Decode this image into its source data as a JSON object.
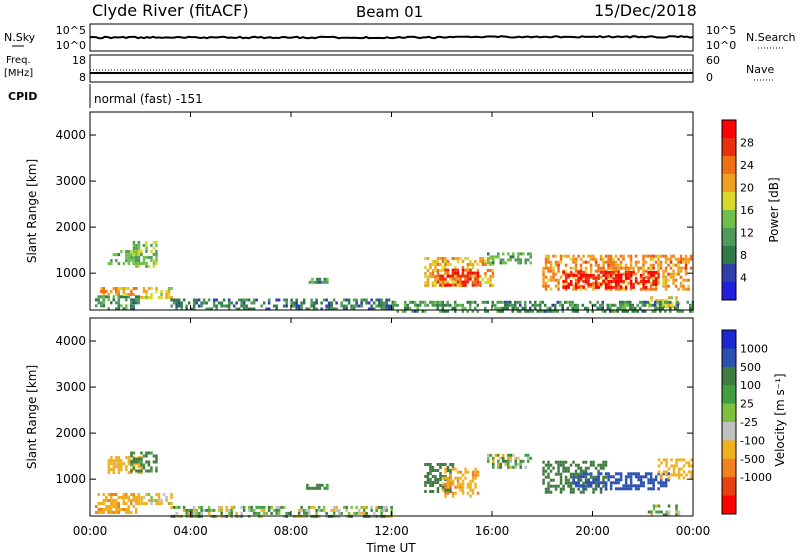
{
  "header": {
    "site": "Clyde River (fitACF)",
    "beam": "Beam 01",
    "date": "15/Dec/2018"
  },
  "top_panels": {
    "nsky_label": "N.Sky",
    "nsky_ticks": [
      "10^5",
      "10^0"
    ],
    "nsearch_label": "N.Search",
    "nsearch_ticks": [
      "10^5",
      "10^0"
    ],
    "freq_label": "Freq.",
    "freq_unit": "[MHz]",
    "freq_ticks": [
      "18",
      "8"
    ],
    "nave_label": "Nave",
    "nave_ticks": [
      "60",
      "0"
    ],
    "cpid_label": "CPID",
    "cpid_text": "normal (fast) -151"
  },
  "colors": {
    "power": [
      "#1f1fdc",
      "#2f3faa",
      "#2f7a46",
      "#4f9a5a",
      "#6fc04a",
      "#d9d92a",
      "#f0a020",
      "#f07018",
      "#e83010",
      "#ff0000"
    ],
    "velocity": [
      "#ff0000",
      "#e84010",
      "#f08020",
      "#f0b020",
      "#c0c0c0",
      "#80c040",
      "#40a040",
      "#407a40",
      "#2a50b0",
      "#1a2ad0"
    ]
  },
  "chart_data": [
    {
      "type": "heatmap",
      "name": "power",
      "ylabel": "Slant Range [km]",
      "ylim": [
        200,
        4500
      ],
      "yticks": [
        "1000",
        "2000",
        "3000",
        "4000"
      ],
      "xlim_hours": [
        0,
        24
      ],
      "colorbar_label": "Power [dB]",
      "colorbar_ticks": [
        "4",
        "8",
        "12",
        "16",
        "20",
        "24",
        "28"
      ],
      "colorbar_range": [
        0,
        32
      ],
      "regions": [
        {
          "t": [
            0.2,
            1.9
          ],
          "r": [
            250,
            520
          ],
          "value": 10
        },
        {
          "t": [
            0.4,
            1.8
          ],
          "r": [
            520,
            700
          ],
          "value": 20
        },
        {
          "t": [
            0.7,
            2.0
          ],
          "r": [
            1200,
            1500
          ],
          "value": 12
        },
        {
          "t": [
            1.6,
            2.6
          ],
          "r": [
            1150,
            1700
          ],
          "value": 14
        },
        {
          "t": [
            2.0,
            3.2
          ],
          "r": [
            500,
            700
          ],
          "value": 18
        },
        {
          "t": [
            3.2,
            12.0
          ],
          "r": [
            200,
            450
          ],
          "value": 8
        },
        {
          "t": [
            8.6,
            9.4
          ],
          "r": [
            780,
            900
          ],
          "value": 10
        },
        {
          "t": [
            13.3,
            16.0
          ],
          "r": [
            700,
            1350
          ],
          "value": 20
        },
        {
          "t": [
            13.8,
            15.4
          ],
          "r": [
            750,
            1100
          ],
          "value": 27
        },
        {
          "t": [
            15.8,
            17.5
          ],
          "r": [
            1200,
            1450
          ],
          "value": 12
        },
        {
          "t": [
            18.0,
            23.9
          ],
          "r": [
            650,
            1400
          ],
          "value": 22
        },
        {
          "t": [
            18.8,
            22.5
          ],
          "r": [
            700,
            1050
          ],
          "value": 30
        },
        {
          "t": [
            22.2,
            23.4
          ],
          "r": [
            250,
            500
          ],
          "value": 18
        },
        {
          "t": [
            12.0,
            24.0
          ],
          "r": [
            200,
            400
          ],
          "value": 10
        }
      ]
    },
    {
      "type": "heatmap",
      "name": "velocity",
      "ylabel": "Slant Range [km]",
      "ylim": [
        200,
        4500
      ],
      "yticks": [
        "1000",
        "2000",
        "3000",
        "4000"
      ],
      "xlabel": "Time UT",
      "xticks": [
        "00:00",
        "04:00",
        "08:00",
        "12:00",
        "16:00",
        "20:00",
        "00:00"
      ],
      "xlim_hours": [
        0,
        24
      ],
      "colorbar_label": "Velocity [m s⁻¹]",
      "colorbar_ticks": [
        "1000",
        "500",
        "100",
        "25",
        "-25",
        "-100",
        "-500",
        "-1000"
      ],
      "regions": [
        {
          "t": [
            0.2,
            1.9
          ],
          "r": [
            300,
            700
          ],
          "value": -400
        },
        {
          "t": [
            0.7,
            2.0
          ],
          "r": [
            1150,
            1500
          ],
          "value": -250
        },
        {
          "t": [
            1.6,
            2.6
          ],
          "r": [
            1150,
            1600
          ],
          "value": 200
        },
        {
          "t": [
            2.0,
            3.2
          ],
          "r": [
            450,
            700
          ],
          "value": -150
        },
        {
          "t": [
            3.2,
            12.0
          ],
          "r": [
            200,
            420
          ],
          "value": 0
        },
        {
          "t": [
            8.6,
            9.4
          ],
          "r": [
            780,
            900
          ],
          "value": 150
        },
        {
          "t": [
            13.3,
            14.4
          ],
          "r": [
            700,
            1350
          ],
          "value": 300
        },
        {
          "t": [
            14.0,
            15.4
          ],
          "r": [
            650,
            1250
          ],
          "value": -400
        },
        {
          "t": [
            15.8,
            17.5
          ],
          "r": [
            1250,
            1550
          ],
          "value": 0
        },
        {
          "t": [
            18.0,
            20.5
          ],
          "r": [
            700,
            1400
          ],
          "value": 300
        },
        {
          "t": [
            19.2,
            23.0
          ],
          "r": [
            800,
            1150
          ],
          "value": 700
        },
        {
          "t": [
            22.6,
            23.9
          ],
          "r": [
            1050,
            1450
          ],
          "value": -300
        },
        {
          "t": [
            22.2,
            23.4
          ],
          "r": [
            250,
            450
          ],
          "value": 0
        }
      ]
    }
  ],
  "xaxis": {
    "label": "Time UT",
    "ticks": [
      "00:00",
      "04:00",
      "08:00",
      "12:00",
      "16:00",
      "20:00",
      "00:00"
    ]
  }
}
